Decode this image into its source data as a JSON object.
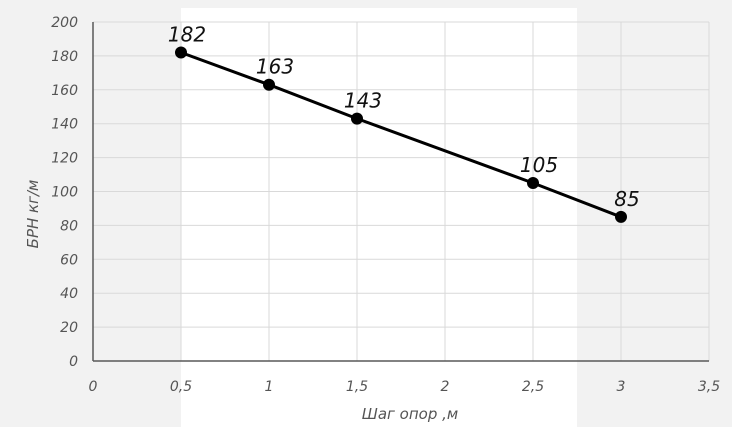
{
  "chart_data": {
    "type": "line",
    "title": "",
    "xlabel": "Шаг опор ,м",
    "ylabel": "БРН кг/м",
    "xlim": [
      0,
      3.5
    ],
    "ylim": [
      0,
      200
    ],
    "x_ticks": [
      "0",
      "0,5",
      "1",
      "1,5",
      "2",
      "2,5",
      "3",
      "3,5"
    ],
    "y_ticks": [
      "0",
      "20",
      "40",
      "60",
      "80",
      "100",
      "120",
      "140",
      "160",
      "180",
      "200"
    ],
    "grid": true,
    "series": [
      {
        "name": "",
        "x": [
          0.5,
          1,
          1.5,
          2.5,
          3
        ],
        "values": [
          182,
          163,
          143,
          105,
          85
        ],
        "labels": [
          "182",
          "163",
          "143",
          "105",
          "85"
        ]
      }
    ],
    "colors": {
      "line": "#000000",
      "grid": "#d9d9d9",
      "axis": "#595959",
      "background": "#ffffff",
      "band": "#f2f2f2"
    }
  }
}
